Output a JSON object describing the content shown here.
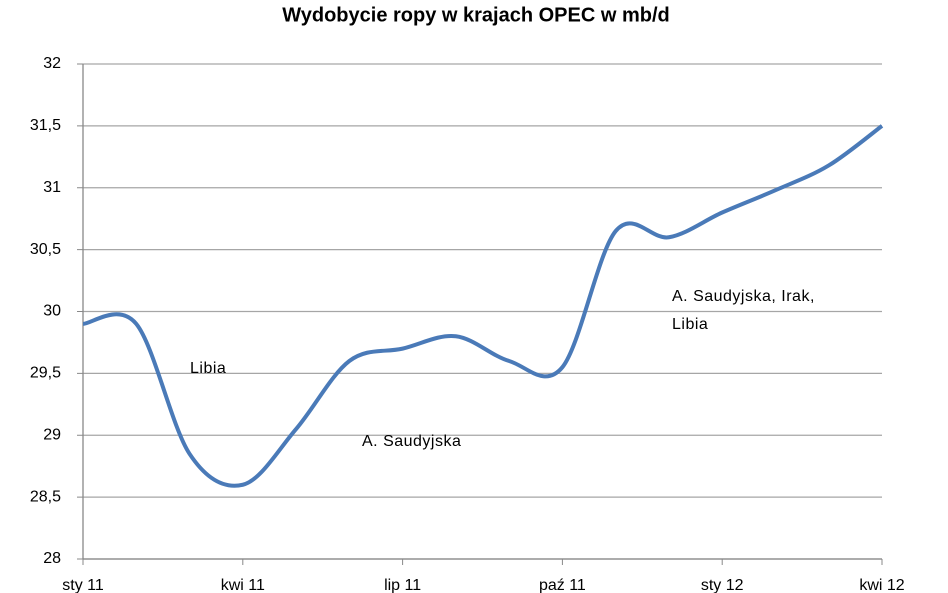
{
  "chart_data": {
    "type": "line",
    "title": "Wydobycie ropy w krajach OPEC w mb/d",
    "categories": [
      "sty 11",
      null,
      null,
      "kwi 11",
      null,
      null,
      "lip 11",
      null,
      null,
      "paź 11",
      null,
      null,
      "sty 12",
      null,
      null,
      "kwi 12"
    ],
    "series": [
      {
        "color": "#4a7ab8",
        "values": [
          29.9,
          29.9,
          28.85,
          28.6,
          29.05,
          29.6,
          29.7,
          29.8,
          29.6,
          29.55,
          30.65,
          30.6,
          30.8,
          30.98,
          31.18,
          31.5
        ]
      }
    ],
    "ylim": [
      28,
      32
    ],
    "yticks": [
      28,
      {
        "value": 28.5,
        "label": "28,5"
      },
      29,
      {
        "value": 29.5,
        "label": "29,5"
      },
      30,
      {
        "value": 30.5,
        "label": "30,5"
      },
      31,
      {
        "value": 31.5,
        "label": "31,5"
      },
      32
    ],
    "grid": true,
    "annotations": [
      "Libia",
      "A. Saudyjska",
      "A. Saudyjska, Irak,",
      "Libia"
    ]
  }
}
